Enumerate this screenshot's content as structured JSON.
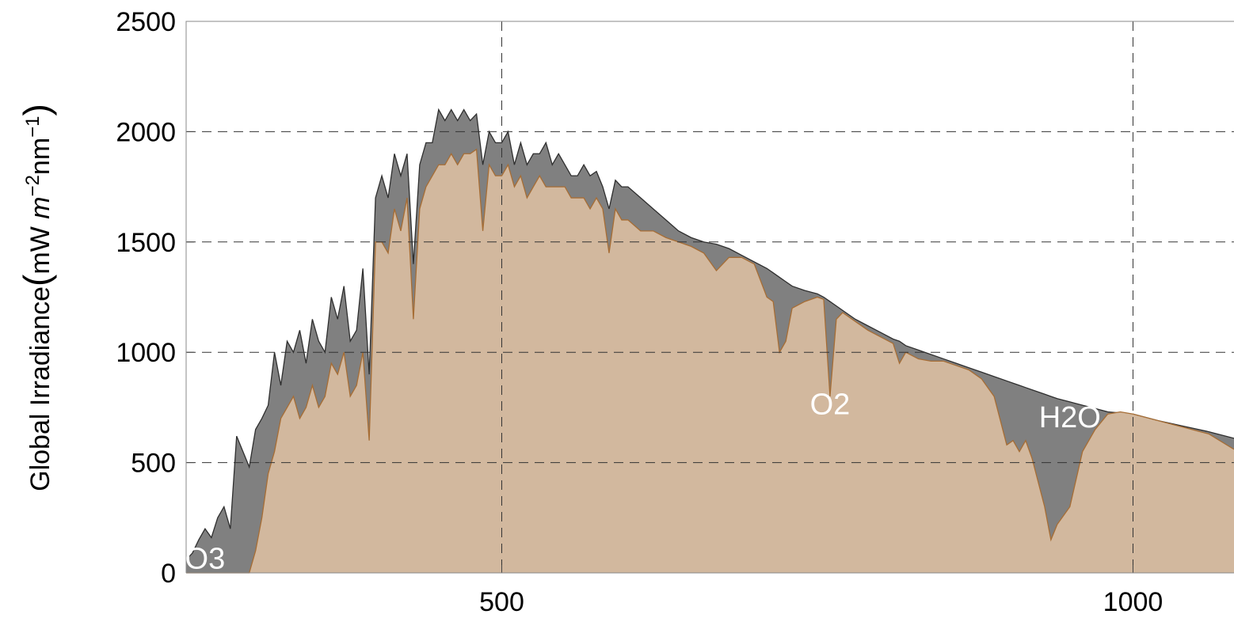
{
  "chart_data": {
    "type": "area",
    "ylabel": "Global  Irradiance",
    "yunit": [
      "(",
      "mW ",
      "m",
      "−2",
      "nm",
      "−1",
      ")"
    ],
    "x": [
      250,
      255,
      260,
      265,
      270,
      275,
      280,
      285,
      290,
      295,
      300,
      305,
      310,
      315,
      320,
      325,
      330,
      335,
      340,
      345,
      350,
      355,
      360,
      365,
      370,
      375,
      380,
      385,
      390,
      395,
      400,
      405,
      410,
      415,
      420,
      425,
      430,
      435,
      440,
      445,
      450,
      455,
      460,
      465,
      470,
      475,
      480,
      485,
      490,
      495,
      500,
      505,
      510,
      515,
      520,
      525,
      530,
      535,
      540,
      545,
      550,
      555,
      560,
      565,
      570,
      575,
      580,
      585,
      590,
      595,
      600,
      610,
      620,
      630,
      640,
      650,
      660,
      670,
      680,
      690,
      700,
      710,
      715,
      720,
      725,
      730,
      740,
      750,
      755,
      760,
      765,
      770,
      780,
      790,
      800,
      810,
      815,
      820,
      830,
      840,
      850,
      860,
      870,
      880,
      890,
      900,
      905,
      910,
      915,
      920,
      930,
      935,
      940,
      950,
      960,
      970,
      980,
      990,
      1000,
      1020,
      1040,
      1060,
      1080
    ],
    "series": [
      {
        "color": "#808080",
        "stroke": "#2e2e2e",
        "values": [
          60,
          90,
          150,
          200,
          160,
          250,
          300,
          200,
          620,
          550,
          480,
          650,
          700,
          760,
          1000,
          850,
          1050,
          1000,
          1100,
          950,
          1150,
          1050,
          1000,
          1250,
          1150,
          1300,
          1050,
          1100,
          1380,
          900,
          1700,
          1800,
          1700,
          1900,
          1800,
          1900,
          1400,
          1850,
          1950,
          1950,
          2100,
          2050,
          2100,
          2050,
          2100,
          2050,
          2080,
          1850,
          2000,
          1950,
          1950,
          2000,
          1850,
          1950,
          1850,
          1900,
          1900,
          1950,
          1850,
          1900,
          1850,
          1800,
          1800,
          1850,
          1800,
          1820,
          1750,
          1650,
          1780,
          1750,
          1750,
          1700,
          1650,
          1600,
          1550,
          1520,
          1500,
          1490,
          1470,
          1440,
          1410,
          1380,
          1360,
          1340,
          1320,
          1300,
          1280,
          1265,
          1250,
          1230,
          1210,
          1190,
          1150,
          1120,
          1090,
          1060,
          1050,
          1030,
          1010,
          990,
          970,
          950,
          930,
          910,
          890,
          870,
          860,
          850,
          840,
          830,
          810,
          800,
          790,
          775,
          760,
          745,
          730,
          725,
          720,
          690,
          665,
          640,
          610
        ]
      },
      {
        "color": "#d2b89e",
        "stroke": "#a66d35",
        "values": [
          0,
          0,
          0,
          0,
          0,
          0,
          0,
          0,
          0,
          0,
          0,
          100,
          250,
          450,
          550,
          700,
          750,
          800,
          700,
          750,
          850,
          750,
          800,
          950,
          900,
          1000,
          800,
          850,
          1000,
          600,
          1500,
          1500,
          1450,
          1650,
          1550,
          1700,
          1150,
          1650,
          1750,
          1800,
          1850,
          1850,
          1900,
          1850,
          1900,
          1900,
          1920,
          1550,
          1850,
          1800,
          1800,
          1850,
          1750,
          1800,
          1700,
          1750,
          1800,
          1750,
          1750,
          1750,
          1750,
          1700,
          1700,
          1700,
          1650,
          1700,
          1650,
          1450,
          1650,
          1600,
          1600,
          1550,
          1550,
          1520,
          1500,
          1480,
          1450,
          1370,
          1430,
          1430,
          1400,
          1250,
          1230,
          1000,
          1050,
          1200,
          1230,
          1250,
          1240,
          800,
          1150,
          1180,
          1140,
          1100,
          1070,
          1040,
          950,
          1000,
          970,
          960,
          960,
          940,
          920,
          880,
          800,
          580,
          600,
          550,
          600,
          520,
          300,
          150,
          220,
          300,
          550,
          650,
          720,
          730,
          720,
          690,
          660,
          630,
          560
        ]
      }
    ],
    "xlim": [
      250,
      1080
    ],
    "ylim": [
      0,
      2500
    ],
    "xticks": [
      500,
      1000
    ],
    "yticks": [
      0,
      500,
      1000,
      1500,
      2000,
      2500
    ],
    "grid": true,
    "annotations": [
      {
        "text": "O3",
        "x": 265,
        "y": 20
      },
      {
        "text": "O2",
        "x": 760,
        "y": 720
      },
      {
        "text": "H2O",
        "x": 950,
        "y": 660
      }
    ]
  }
}
